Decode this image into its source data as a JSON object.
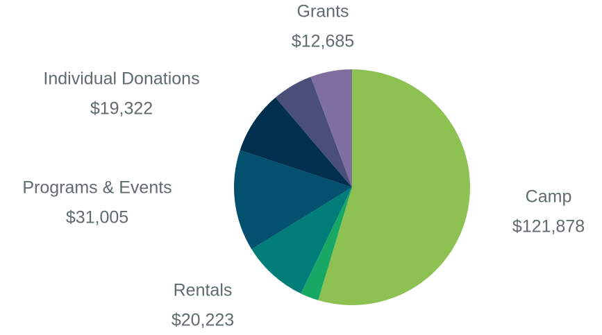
{
  "chart_data": {
    "type": "pie",
    "categories": [
      "Camp",
      null,
      "Rentals",
      "Programs & Events",
      "Individual Donations",
      null,
      "Grants"
    ],
    "values": [
      121878,
      5600,
      20223,
      31005,
      19322,
      12400,
      12685
    ],
    "value_labels": [
      "$121,878",
      null,
      "$20,223",
      "$31,005",
      "$19,322",
      null,
      "$12,685"
    ],
    "colors": [
      "#8dc152",
      "#17a865",
      "#007d79",
      "#03506f",
      "#012f4e",
      "#4a4f79",
      "#7f6fa0"
    ]
  }
}
